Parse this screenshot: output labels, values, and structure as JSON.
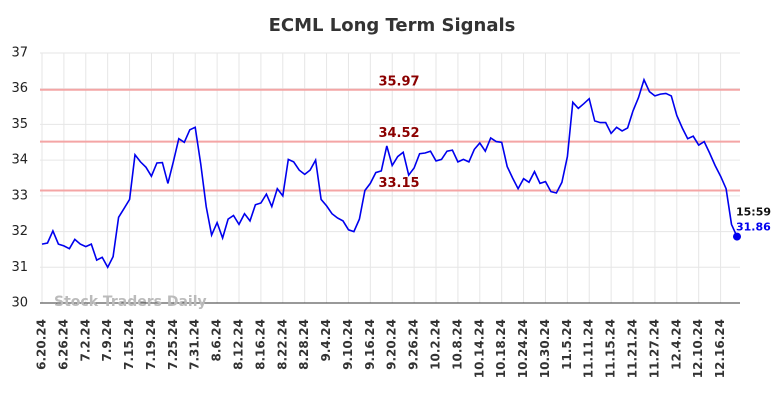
{
  "chart_data": {
    "type": "line",
    "title": "ECML Long Term Signals",
    "categories": [
      "6.20.24",
      null,
      null,
      null,
      "6.26.24",
      null,
      null,
      null,
      "7.2.24",
      null,
      null,
      null,
      "7.9.24",
      null,
      null,
      null,
      "7.15.24",
      null,
      null,
      null,
      "7.19.24",
      null,
      null,
      null,
      "7.25.24",
      null,
      null,
      null,
      "7.31.24",
      null,
      null,
      null,
      "8.6.24",
      null,
      null,
      null,
      "8.12.24",
      null,
      null,
      null,
      "8.16.24",
      null,
      null,
      null,
      "8.22.24",
      null,
      null,
      null,
      "8.28.24",
      null,
      null,
      null,
      "9.4.24",
      null,
      null,
      null,
      "9.10.24",
      null,
      null,
      null,
      "9.16.24",
      null,
      null,
      null,
      "9.20.24",
      null,
      null,
      null,
      "9.26.24",
      null,
      null,
      null,
      "10.2.24",
      null,
      null,
      null,
      "10.8.24",
      null,
      null,
      null,
      "10.14.24",
      null,
      null,
      null,
      "10.18.24",
      null,
      null,
      null,
      "10.24.24",
      null,
      null,
      null,
      "10.30.24",
      null,
      null,
      null,
      "11.5.24",
      null,
      null,
      null,
      "11.11.24",
      null,
      null,
      null,
      "11.15.24",
      null,
      null,
      null,
      "11.21.24",
      null,
      null,
      null,
      "11.27.24",
      null,
      null,
      null,
      "12.4.24",
      null,
      null,
      null,
      "12.10.24",
      null,
      null,
      null,
      "12.16.24",
      null,
      null,
      null
    ],
    "values": [
      31.65,
      31.68,
      32.02,
      31.65,
      31.6,
      31.52,
      31.78,
      31.65,
      31.58,
      31.65,
      31.2,
      31.28,
      31.0,
      31.3,
      32.4,
      32.65,
      32.9,
      34.15,
      33.95,
      33.8,
      33.55,
      33.92,
      33.93,
      33.35,
      33.95,
      34.6,
      34.5,
      34.85,
      34.92,
      33.9,
      32.7,
      31.9,
      32.25,
      31.82,
      32.35,
      32.45,
      32.2,
      32.5,
      32.3,
      32.75,
      32.8,
      33.05,
      32.7,
      33.2,
      33.0,
      34.02,
      33.95,
      33.72,
      33.6,
      33.72,
      34.0,
      32.9,
      32.72,
      32.5,
      32.38,
      32.3,
      32.05,
      32.0,
      32.35,
      33.15,
      33.35,
      33.65,
      33.7,
      34.4,
      33.85,
      34.1,
      34.22,
      33.58,
      33.78,
      34.18,
      34.2,
      34.25,
      33.98,
      34.02,
      34.25,
      34.28,
      33.95,
      34.02,
      33.95,
      34.3,
      34.48,
      34.25,
      34.62,
      34.52,
      34.5,
      33.82,
      33.5,
      33.2,
      33.48,
      33.38,
      33.68,
      33.35,
      33.4,
      33.12,
      33.08,
      33.38,
      34.1,
      35.62,
      35.45,
      35.58,
      35.72,
      35.1,
      35.05,
      35.05,
      34.75,
      34.92,
      34.82,
      34.9,
      35.38,
      35.75,
      36.25,
      35.92,
      35.8,
      35.85,
      35.87,
      35.8,
      35.25,
      34.9,
      34.6,
      34.67,
      34.42,
      34.52,
      34.2,
      33.85,
      33.55,
      33.2,
      32.2,
      31.86
    ],
    "color": "#0000ee",
    "hlines": [
      35.97,
      34.52,
      33.15
    ],
    "hline_color": "#f4a5a5",
    "hline_label_color": "#8b0000",
    "end_time": "15:59",
    "watermark": "Stock Traders Daily",
    "ylim": [
      30,
      37
    ],
    "yticks": [
      30,
      31,
      32,
      33,
      34,
      35,
      36,
      37
    ],
    "grid": true
  }
}
